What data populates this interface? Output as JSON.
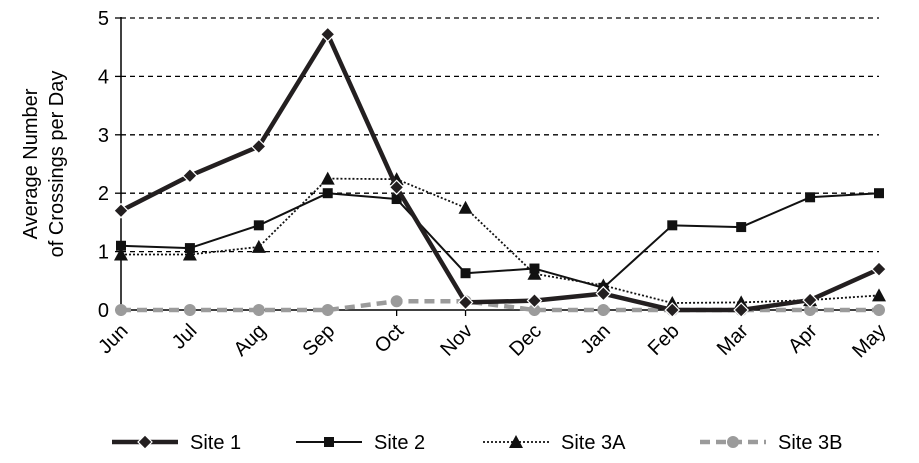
{
  "chart_data": {
    "type": "line",
    "title": "",
    "xlabel": "",
    "ylabel_lines": [
      "Average Number",
      "of Crossings per Day"
    ],
    "categories": [
      "Jun",
      "Jul",
      "Aug",
      "Sep",
      "Oct",
      "Nov",
      "Dec",
      "Jan",
      "Feb",
      "Mar",
      "Apr",
      "May"
    ],
    "ylim": [
      0,
      5
    ],
    "yticks": [
      "0",
      "1",
      "2",
      "3",
      "4",
      "5"
    ],
    "grid": "horizontal dashed",
    "legend_position": "bottom",
    "series": [
      {
        "name": "Site 1",
        "marker": "diamond",
        "color": "#231f20",
        "line_style": "solid-thick",
        "values": [
          1.7,
          2.3,
          2.8,
          4.72,
          2.1,
          0.13,
          0.16,
          0.28,
          0.0,
          0.0,
          0.17,
          0.7
        ]
      },
      {
        "name": "Site 2",
        "marker": "square",
        "color": "#111111",
        "line_style": "solid",
        "values": [
          1.1,
          1.06,
          1.45,
          2.0,
          1.9,
          0.63,
          0.71,
          0.38,
          1.45,
          1.42,
          1.93,
          2.0
        ]
      },
      {
        "name": "Site 3A",
        "marker": "triangle",
        "color": "#111111",
        "line_style": "dotted",
        "values": [
          0.95,
          0.95,
          1.08,
          2.25,
          2.24,
          1.75,
          0.62,
          0.42,
          0.12,
          0.13,
          0.17,
          0.25
        ]
      },
      {
        "name": "Site 3B",
        "marker": "circle",
        "color": "#9b9b9b",
        "line_style": "dashed-thick",
        "values": [
          0.0,
          0.0,
          0.0,
          0.0,
          0.15,
          0.15,
          0.0,
          0.0,
          0.0,
          0.0,
          0.0,
          0.0
        ]
      }
    ]
  }
}
